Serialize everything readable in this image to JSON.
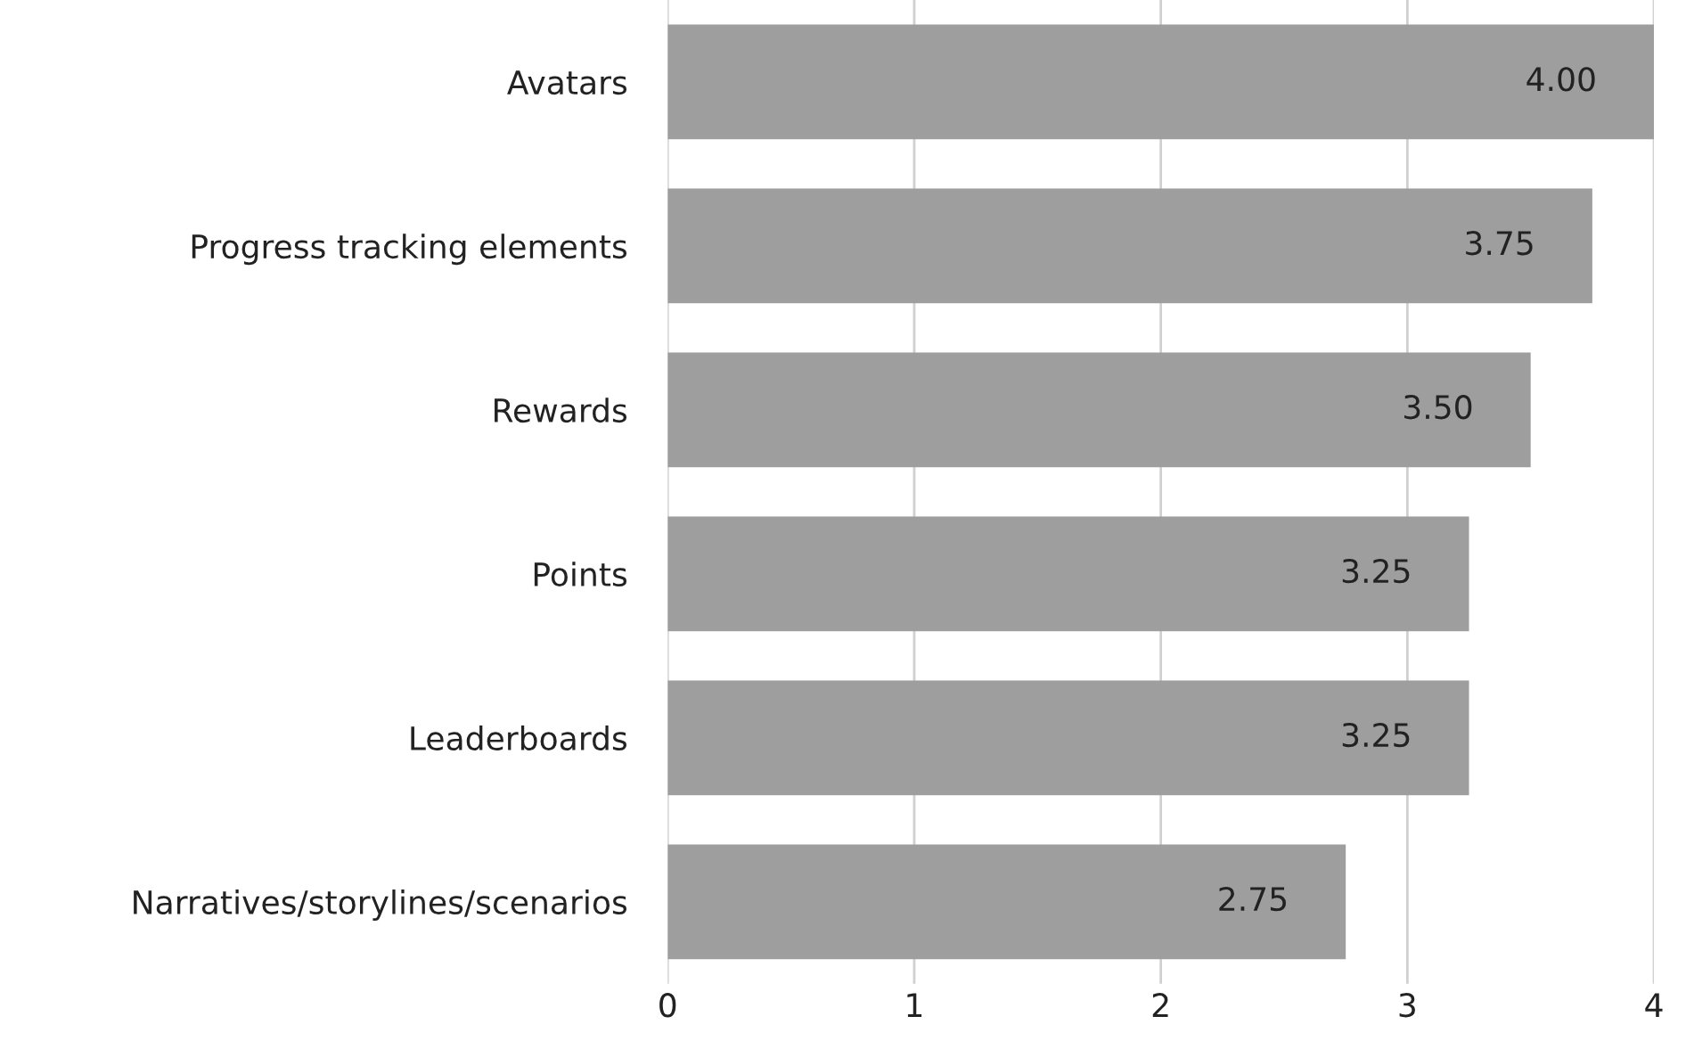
{
  "chart_data": {
    "type": "bar",
    "orientation": "horizontal",
    "categories": [
      "Avatars",
      "Progress tracking elements",
      "Rewards",
      "Points",
      "Leaderboards",
      "Narratives/storylines/scenarios"
    ],
    "values": [
      4.0,
      3.75,
      3.5,
      3.25,
      3.25,
      2.75
    ],
    "value_labels": [
      "4.00",
      "3.75",
      "3.50",
      "3.25",
      "3.25",
      "2.75"
    ],
    "color": "#9e9e9e",
    "xlim": [
      0,
      4
    ],
    "xticks": [
      0,
      1,
      2,
      3,
      4
    ],
    "grid": "x"
  }
}
